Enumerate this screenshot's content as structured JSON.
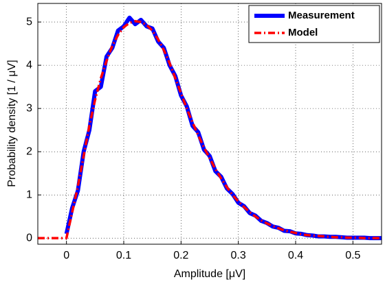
{
  "chart_data": {
    "type": "line",
    "xlabel": "Amplitude  [μV]",
    "ylabel": "Probability density  [1 / μV]",
    "xlim": [
      -0.05,
      0.55
    ],
    "ylim": [
      -0.14,
      5.43
    ],
    "xticks": [
      0,
      0.1,
      0.2,
      0.3,
      0.4,
      0.5
    ],
    "yticks": [
      0,
      1,
      2,
      3,
      4,
      5
    ],
    "grid": true,
    "legend": "northeast",
    "x": [
      -0.05,
      -0.04,
      -0.03,
      -0.02,
      -0.01,
      0,
      0.01,
      0.02,
      0.03,
      0.04,
      0.05,
      0.06,
      0.07,
      0.08,
      0.09,
      0.1,
      0.11,
      0.12,
      0.13,
      0.14,
      0.15,
      0.16,
      0.17,
      0.18,
      0.19,
      0.2,
      0.21,
      0.22,
      0.23,
      0.24,
      0.25,
      0.26,
      0.27,
      0.28,
      0.29,
      0.3,
      0.31,
      0.32,
      0.33,
      0.34,
      0.35,
      0.36,
      0.37,
      0.38,
      0.39,
      0.4,
      0.41,
      0.42,
      0.43,
      0.44,
      0.45,
      0.46,
      0.47,
      0.48,
      0.49,
      0.5,
      0.51,
      0.52,
      0.53,
      0.54,
      0.55
    ],
    "series": [
      {
        "name": "Measurement",
        "color": "#0000ff",
        "style": "solid",
        "values": [
          null,
          null,
          null,
          null,
          null,
          0.1,
          0.7,
          1.1,
          2.0,
          2.5,
          3.4,
          3.5,
          4.2,
          4.4,
          4.8,
          4.9,
          5.1,
          4.95,
          5.05,
          4.9,
          4.85,
          4.55,
          4.4,
          4.0,
          3.75,
          3.3,
          3.05,
          2.6,
          2.45,
          2.05,
          1.9,
          1.55,
          1.42,
          1.15,
          1.02,
          0.82,
          0.74,
          0.58,
          0.52,
          0.4,
          0.35,
          0.27,
          0.24,
          0.17,
          0.16,
          0.11,
          0.1,
          0.07,
          0.06,
          0.04,
          0.04,
          0.03,
          0.03,
          0.02,
          0.01,
          0.01,
          0.01,
          0.01,
          0,
          0,
          0
        ]
      },
      {
        "name": "Model",
        "color": "#ff0000",
        "style": "dashdot",
        "values": [
          0,
          0,
          0,
          0,
          0,
          0,
          0.6,
          1.2,
          1.9,
          2.6,
          3.2,
          3.7,
          4.1,
          4.45,
          4.7,
          4.88,
          4.98,
          5.02,
          5.0,
          4.93,
          4.8,
          4.6,
          4.35,
          4.05,
          3.7,
          3.35,
          3.0,
          2.68,
          2.38,
          2.1,
          1.85,
          1.6,
          1.38,
          1.18,
          1.0,
          0.85,
          0.72,
          0.6,
          0.5,
          0.41,
          0.34,
          0.28,
          0.23,
          0.18,
          0.15,
          0.12,
          0.09,
          0.07,
          0.06,
          0.05,
          0.04,
          0.03,
          0.02,
          0.02,
          0.01,
          0.01,
          0.01,
          0,
          0,
          0,
          0
        ]
      }
    ]
  }
}
